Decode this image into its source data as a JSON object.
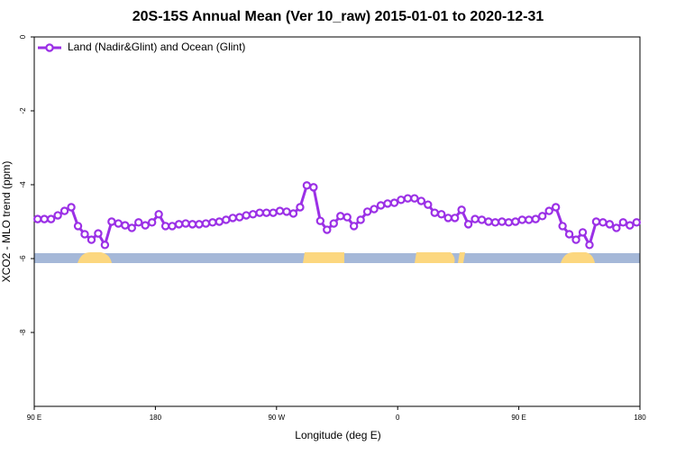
{
  "chart_data": {
    "type": "line",
    "title": "20S-15S Annual Mean (Ver 10_raw)   2015-01-01 to 2020-12-31",
    "xlabel": "Longitude (deg E)",
    "ylabel": "XCO2 - MLO trend (ppm)",
    "x": [
      92.5,
      97.5,
      102.5,
      107.5,
      112.5,
      117.5,
      122.5,
      127.5,
      132.5,
      137.5,
      142.5,
      147.5,
      152.5,
      157.5,
      162.5,
      167.5,
      172.5,
      177.5,
      182.5,
      187.5,
      192.5,
      197.5,
      202.5,
      207.5,
      212.5,
      217.5,
      222.5,
      227.5,
      232.5,
      237.5,
      242.5,
      247.5,
      252.5,
      257.5,
      262.5,
      267.5,
      272.5,
      277.5,
      282.5,
      287.5,
      292.5,
      297.5,
      302.5,
      307.5,
      312.5,
      317.5,
      322.5,
      327.5,
      332.5,
      337.5,
      342.5,
      347.5,
      352.5,
      357.5,
      362.5,
      367.5,
      372.5,
      377.5,
      382.5,
      387.5,
      392.5,
      397.5,
      402.5,
      407.5,
      412.5,
      417.5,
      422.5,
      427.5,
      432.5,
      437.5,
      442.5,
      447.5,
      452.5,
      457.5,
      462.5,
      467.5,
      472.5,
      477.5,
      482.5,
      487.5,
      492.5,
      497.5,
      502.5,
      507.5,
      512.5,
      517.5,
      522.5,
      527.5,
      532.5,
      537.5
    ],
    "series": [
      {
        "name": "Land (Nadir&Glint) and Ocean (Glint)",
        "color": "#9b30e6",
        "values": [
          -4.93,
          -4.93,
          -4.93,
          -4.83,
          -4.71,
          -4.61,
          -5.12,
          -5.34,
          -5.49,
          -5.32,
          -5.63,
          -5.0,
          -5.05,
          -5.1,
          -5.17,
          -5.02,
          -5.1,
          -5.02,
          -4.8,
          -5.12,
          -5.12,
          -5.07,
          -5.05,
          -5.07,
          -5.07,
          -5.05,
          -5.02,
          -5.0,
          -4.95,
          -4.9,
          -4.88,
          -4.83,
          -4.8,
          -4.76,
          -4.76,
          -4.76,
          -4.71,
          -4.73,
          -4.78,
          -4.61,
          -4.02,
          -4.07,
          -4.98,
          -5.22,
          -5.05,
          -4.85,
          -4.88,
          -5.12,
          -4.95,
          -4.73,
          -4.66,
          -4.56,
          -4.51,
          -4.49,
          -4.41,
          -4.37,
          -4.37,
          -4.44,
          -4.54,
          -4.76,
          -4.8,
          -4.9,
          -4.9,
          -4.68,
          -5.07,
          -4.93,
          -4.95,
          -5.0,
          -5.02,
          -5.0,
          -5.02,
          -5.0,
          -4.95,
          -4.95,
          -4.93,
          -4.85,
          -4.71,
          -4.61,
          -5.12,
          -5.34,
          -5.49,
          -5.29,
          -5.63,
          -5.0,
          -5.02,
          -5.07,
          -5.17,
          -5.02,
          -5.1,
          -5.02
        ]
      }
    ],
    "xlim": [
      90,
      540
    ],
    "xticks": [
      {
        "value": 90,
        "label": "90 E"
      },
      180,
      {
        "value": 270,
        "label": "90 W"
      },
      {
        "value": 360,
        "label": "0"
      },
      {
        "value": 450,
        "label": "90 E"
      },
      {
        "value": 540,
        "label": "180"
      }
    ],
    "ylim": [
      -10,
      0
    ],
    "yticks": [
      0,
      -2,
      -4,
      -6,
      -8
    ],
    "legend": "top-left"
  }
}
